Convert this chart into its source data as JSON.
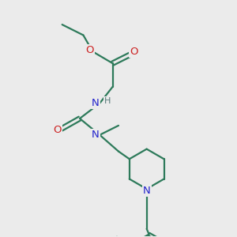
{
  "bg_color": "#ebebeb",
  "bond_color": "#2d7a5a",
  "n_color": "#2222cc",
  "o_color": "#cc2222",
  "h_color": "#557777",
  "line_width": 1.6,
  "figsize": [
    3.0,
    3.0
  ],
  "dpi": 100,
  "xlim": [
    0,
    10
  ],
  "ylim": [
    0,
    10
  ]
}
